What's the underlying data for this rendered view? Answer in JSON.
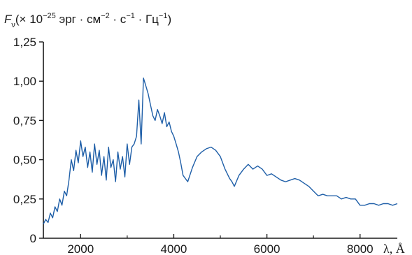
{
  "chart_data": {
    "type": "line",
    "title": "",
    "ylabel": {
      "main": "F",
      "sub": "ν",
      "open": "(× 10",
      "exp1": "−25",
      "u1": " эрг · см",
      "exp2": "−2",
      "u2": " · с",
      "exp3": "−1",
      "u3": " · Гц",
      "exp4": "−1",
      "close": ")"
    },
    "xlabel": "λ, Å",
    "xlim": [
      1200,
      8800
    ],
    "ylim": [
      0,
      1.25
    ],
    "xticks": [
      2000,
      4000,
      6000,
      8000
    ],
    "xtick_labels": [
      "2000",
      "4000",
      "6000",
      "8000"
    ],
    "yticks": [
      0,
      0.25,
      0.5,
      0.75,
      1.0,
      1.25
    ],
    "ytick_labels": [
      "0",
      "0,25",
      "0,50",
      "0,75",
      "1,00",
      "1,25"
    ],
    "line_color": "#1f5fa8",
    "grid": false,
    "series": [
      {
        "x": [
          1200,
          1250,
          1300,
          1350,
          1400,
          1450,
          1500,
          1550,
          1600,
          1650,
          1700,
          1750,
          1800,
          1850,
          1900,
          1950,
          2000,
          2050,
          2100,
          2150,
          2200,
          2250,
          2300,
          2350,
          2400,
          2450,
          2500,
          2550,
          2600,
          2650,
          2700,
          2750,
          2800,
          2850,
          2900,
          2950,
          3000,
          3050,
          3100,
          3150,
          3200,
          3250,
          3300,
          3350,
          3400,
          3450,
          3500,
          3550,
          3600,
          3650,
          3700,
          3750,
          3800,
          3850,
          3900,
          3950,
          4000,
          4050,
          4100,
          4150,
          4200,
          4300,
          4400,
          4500,
          4600,
          4700,
          4800,
          4900,
          5000,
          5100,
          5200,
          5250,
          5300,
          5400,
          5500,
          5600,
          5700,
          5800,
          5900,
          6000,
          6100,
          6200,
          6300,
          6400,
          6500,
          6600,
          6700,
          6800,
          6900,
          7000,
          7100,
          7200,
          7300,
          7400,
          7500,
          7600,
          7700,
          7800,
          7900,
          8000,
          8100,
          8200,
          8300,
          8400,
          8500,
          8600,
          8700,
          8800
        ],
        "y": [
          0.09,
          0.12,
          0.1,
          0.16,
          0.13,
          0.2,
          0.17,
          0.25,
          0.21,
          0.3,
          0.27,
          0.37,
          0.5,
          0.43,
          0.56,
          0.48,
          0.62,
          0.52,
          0.58,
          0.45,
          0.55,
          0.42,
          0.6,
          0.47,
          0.56,
          0.4,
          0.52,
          0.37,
          0.58,
          0.45,
          0.5,
          0.36,
          0.55,
          0.44,
          0.52,
          0.39,
          0.6,
          0.47,
          0.58,
          0.6,
          0.65,
          0.88,
          0.6,
          1.02,
          0.97,
          0.92,
          0.85,
          0.78,
          0.75,
          0.82,
          0.78,
          0.73,
          0.8,
          0.71,
          0.74,
          0.68,
          0.65,
          0.6,
          0.55,
          0.48,
          0.4,
          0.36,
          0.45,
          0.52,
          0.55,
          0.57,
          0.58,
          0.56,
          0.52,
          0.44,
          0.38,
          0.36,
          0.33,
          0.4,
          0.44,
          0.47,
          0.44,
          0.46,
          0.44,
          0.4,
          0.41,
          0.39,
          0.37,
          0.36,
          0.37,
          0.38,
          0.37,
          0.35,
          0.33,
          0.3,
          0.27,
          0.28,
          0.27,
          0.27,
          0.27,
          0.25,
          0.26,
          0.25,
          0.25,
          0.21,
          0.21,
          0.22,
          0.22,
          0.21,
          0.22,
          0.22,
          0.21,
          0.22
        ]
      }
    ]
  }
}
